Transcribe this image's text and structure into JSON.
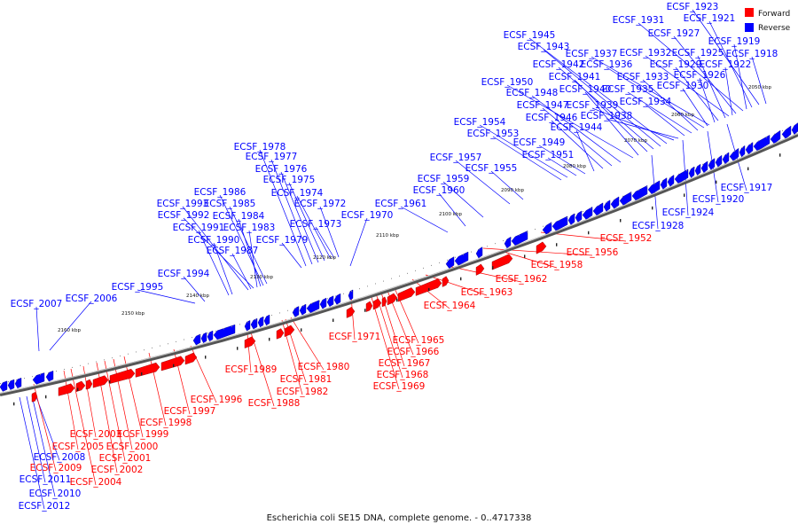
{
  "caption": "Escherichia coli SE15 DNA, complete genome. - 0..4717338",
  "legend": {
    "forward_label": "Forward",
    "reverse_label": "Reverse",
    "forward_color": "#ff0000",
    "reverse_color": "#0000ff"
  },
  "ticks": [
    "2050 kbp",
    "2060 kbp",
    "2070 kbp",
    "2080 kbp",
    "2090 kbp",
    "2100 kbp",
    "2110 kbp",
    "2120 kbp",
    "2130 kbp",
    "2140 kbp",
    "2150 kbp",
    "2160 kbp"
  ],
  "genes_reverse": [
    "ECSF_1917",
    "ECSF_1918",
    "ECSF_1919",
    "ECSF_1920",
    "ECSF_1921",
    "ECSF_1922",
    "ECSF_1923",
    "ECSF_1924",
    "ECSF_1925",
    "ECSF_1926",
    "ECSF_1927",
    "ECSF_1928",
    "ECSF_1929",
    "ECSF_1930",
    "ECSF_1931",
    "ECSF_1932",
    "ECSF_1933",
    "ECSF_1934",
    "ECSF_1935",
    "ECSF_1936",
    "ECSF_1937",
    "ECSF_1938",
    "ECSF_1939",
    "ECSF_1940",
    "ECSF_1941",
    "ECSF_1942",
    "ECSF_1943",
    "ECSF_1944",
    "ECSF_1945",
    "ECSF_1946",
    "ECSF_1947",
    "ECSF_1948",
    "ECSF_1949",
    "ECSF_1950",
    "ECSF_1951",
    "ECSF_1953",
    "ECSF_1954",
    "ECSF_1955",
    "ECSF_1957",
    "ECSF_1959",
    "ECSF_1960",
    "ECSF_1961",
    "ECSF_1970",
    "ECSF_1972",
    "ECSF_1973",
    "ECSF_1974",
    "ECSF_1975",
    "ECSF_1976",
    "ECSF_1977",
    "ECSF_1978",
    "ECSF_1979",
    "ECSF_1983",
    "ECSF_1984",
    "ECSF_1985",
    "ECSF_1986",
    "ECSF_1987",
    "ECSF_1990",
    "ECSF_1991",
    "ECSF_1992",
    "ECSF_1993",
    "ECSF_1994",
    "ECSF_1995",
    "ECSF_2006",
    "ECSF_2007",
    "ECSF_2008",
    "ECSF_2010",
    "ECSF_2011",
    "ECSF_2012"
  ],
  "genes_forward": [
    "ECSF_1952",
    "ECSF_1956",
    "ECSF_1958",
    "ECSF_1962",
    "ECSF_1963",
    "ECSF_1964",
    "ECSF_1965",
    "ECSF_1966",
    "ECSF_1967",
    "ECSF_1968",
    "ECSF_1969",
    "ECSF_1971",
    "ECSF_1980",
    "ECSF_1981",
    "ECSF_1982",
    "ECSF_1988",
    "ECSF_1989",
    "ECSF_1996",
    "ECSF_1997",
    "ECSF_1998",
    "ECSF_1999",
    "ECSF_2000",
    "ECSF_2001",
    "ECSF_2002",
    "ECSF_2003",
    "ECSF_2004",
    "ECSF_2005",
    "ECSF_2009"
  ]
}
